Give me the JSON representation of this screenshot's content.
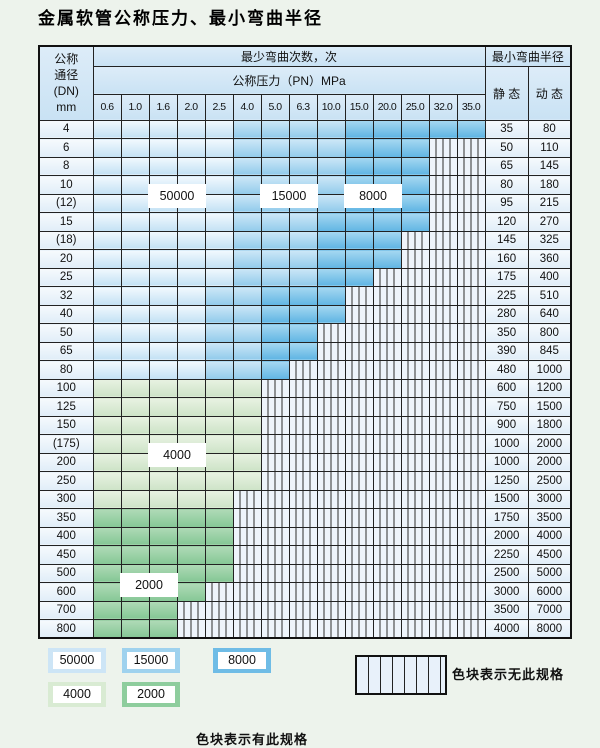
{
  "title": "金属软管公称压力、最小弯曲半径",
  "table": {
    "dn_header": "公称\n通径\n(DN)\nmm",
    "cycles_header": "最少弯曲次数，次",
    "pn_header": "公称压力（PN）MPa",
    "radius_header": "最小弯曲半径",
    "static_header": "静 态",
    "dynamic_header": "动 态",
    "pressures": [
      "0.6",
      "1.0",
      "1.6",
      "2.0",
      "2.5",
      "4.0",
      "5.0",
      "6.3",
      "10.0",
      "15.0",
      "20.0",
      "25.0",
      "32.0",
      "35.0"
    ],
    "rows": [
      {
        "dn": "4",
        "static": "35",
        "dynamic": "80",
        "cells": [
          "b1",
          "b1",
          "b1",
          "b1",
          "b1",
          "b2",
          "b2",
          "b2",
          "b2",
          "b3",
          "b3",
          "b3",
          "b3",
          "b3"
        ]
      },
      {
        "dn": "6",
        "static": "50",
        "dynamic": "110",
        "cells": [
          "b1",
          "b1",
          "b1",
          "b1",
          "b1",
          "b2",
          "b2",
          "b2",
          "b2",
          "b3",
          "b3",
          "b3",
          "x",
          "x"
        ]
      },
      {
        "dn": "8",
        "static": "65",
        "dynamic": "145",
        "cells": [
          "b1",
          "b1",
          "b1",
          "b1",
          "b1",
          "b2",
          "b2",
          "b2",
          "b2",
          "b3",
          "b3",
          "b3",
          "x",
          "x"
        ]
      },
      {
        "dn": "10",
        "static": "80",
        "dynamic": "180",
        "cells": [
          "b1",
          "b1",
          "b1",
          "b1",
          "b1",
          "b2",
          "b2",
          "b2",
          "b2",
          "b3",
          "b3",
          "b3",
          "x",
          "x"
        ]
      },
      {
        "dn": "(12)",
        "static": "95",
        "dynamic": "215",
        "cells": [
          "b1",
          "b1",
          "b1",
          "b1",
          "b1",
          "b2",
          "b2",
          "b2",
          "b2",
          "b3",
          "b3",
          "b3",
          "x",
          "x"
        ]
      },
      {
        "dn": "15",
        "static": "120",
        "dynamic": "270",
        "cells": [
          "b1",
          "b1",
          "b1",
          "b1",
          "b1",
          "b2",
          "b2",
          "b2",
          "b3",
          "b3",
          "b3",
          "b3",
          "x",
          "x"
        ]
      },
      {
        "dn": "(18)",
        "static": "145",
        "dynamic": "325",
        "cells": [
          "b1",
          "b1",
          "b1",
          "b1",
          "b1",
          "b2",
          "b2",
          "b2",
          "b3",
          "b3",
          "b3",
          "x",
          "x",
          "x"
        ]
      },
      {
        "dn": "20",
        "static": "160",
        "dynamic": "360",
        "cells": [
          "b1",
          "b1",
          "b1",
          "b1",
          "b1",
          "b2",
          "b2",
          "b2",
          "b3",
          "b3",
          "b3",
          "x",
          "x",
          "x"
        ]
      },
      {
        "dn": "25",
        "static": "175",
        "dynamic": "400",
        "cells": [
          "b1",
          "b1",
          "b1",
          "b1",
          "b1",
          "b2",
          "b2",
          "b2",
          "b3",
          "b3",
          "x",
          "x",
          "x",
          "x"
        ]
      },
      {
        "dn": "32",
        "static": "225",
        "dynamic": "510",
        "cells": [
          "b1",
          "b1",
          "b1",
          "b1",
          "b2",
          "b2",
          "b3",
          "b3",
          "b3",
          "x",
          "x",
          "x",
          "x",
          "x"
        ]
      },
      {
        "dn": "40",
        "static": "280",
        "dynamic": "640",
        "cells": [
          "b1",
          "b1",
          "b1",
          "b1",
          "b2",
          "b2",
          "b3",
          "b3",
          "b3",
          "x",
          "x",
          "x",
          "x",
          "x"
        ]
      },
      {
        "dn": "50",
        "static": "350",
        "dynamic": "800",
        "cells": [
          "b1",
          "b1",
          "b1",
          "b1",
          "b2",
          "b2",
          "b3",
          "b3",
          "x",
          "x",
          "x",
          "x",
          "x",
          "x"
        ]
      },
      {
        "dn": "65",
        "static": "390",
        "dynamic": "845",
        "cells": [
          "b1",
          "b1",
          "b1",
          "b1",
          "b2",
          "b2",
          "b3",
          "b3",
          "x",
          "x",
          "x",
          "x",
          "x",
          "x"
        ]
      },
      {
        "dn": "80",
        "static": "480",
        "dynamic": "1000",
        "cells": [
          "b1",
          "b1",
          "b1",
          "b1",
          "b2",
          "b2",
          "b3",
          "x",
          "x",
          "x",
          "x",
          "x",
          "x",
          "x"
        ]
      },
      {
        "dn": "100",
        "static": "600",
        "dynamic": "1200",
        "cells": [
          "g1",
          "g1",
          "g1",
          "g1",
          "g1",
          "g1",
          "x",
          "x",
          "x",
          "x",
          "x",
          "x",
          "x",
          "x"
        ]
      },
      {
        "dn": "125",
        "static": "750",
        "dynamic": "1500",
        "cells": [
          "g1",
          "g1",
          "g1",
          "g1",
          "g1",
          "g1",
          "x",
          "x",
          "x",
          "x",
          "x",
          "x",
          "x",
          "x"
        ]
      },
      {
        "dn": "150",
        "static": "900",
        "dynamic": "1800",
        "cells": [
          "g1",
          "g1",
          "g1",
          "g1",
          "g1",
          "g1",
          "x",
          "x",
          "x",
          "x",
          "x",
          "x",
          "x",
          "x"
        ]
      },
      {
        "dn": "(175)",
        "static": "1000",
        "dynamic": "2000",
        "cells": [
          "g1",
          "g1",
          "g1",
          "g1",
          "g1",
          "g1",
          "x",
          "x",
          "x",
          "x",
          "x",
          "x",
          "x",
          "x"
        ]
      },
      {
        "dn": "200",
        "static": "1000",
        "dynamic": "2000",
        "cells": [
          "g1",
          "g1",
          "g1",
          "g1",
          "g1",
          "g1",
          "x",
          "x",
          "x",
          "x",
          "x",
          "x",
          "x",
          "x"
        ]
      },
      {
        "dn": "250",
        "static": "1250",
        "dynamic": "2500",
        "cells": [
          "g1",
          "g1",
          "g1",
          "g1",
          "g1",
          "g1",
          "x",
          "x",
          "x",
          "x",
          "x",
          "x",
          "x",
          "x"
        ]
      },
      {
        "dn": "300",
        "static": "1500",
        "dynamic": "3000",
        "cells": [
          "g1",
          "g1",
          "g1",
          "g1",
          "g1",
          "x",
          "x",
          "x",
          "x",
          "x",
          "x",
          "x",
          "x",
          "x"
        ]
      },
      {
        "dn": "350",
        "static": "1750",
        "dynamic": "3500",
        "cells": [
          "g2",
          "g2",
          "g2",
          "g2",
          "g2",
          "x",
          "x",
          "x",
          "x",
          "x",
          "x",
          "x",
          "x",
          "x"
        ]
      },
      {
        "dn": "400",
        "static": "2000",
        "dynamic": "4000",
        "cells": [
          "g2",
          "g2",
          "g2",
          "g2",
          "g2",
          "x",
          "x",
          "x",
          "x",
          "x",
          "x",
          "x",
          "x",
          "x"
        ]
      },
      {
        "dn": "450",
        "static": "2250",
        "dynamic": "4500",
        "cells": [
          "g2",
          "g2",
          "g2",
          "g2",
          "g2",
          "x",
          "x",
          "x",
          "x",
          "x",
          "x",
          "x",
          "x",
          "x"
        ]
      },
      {
        "dn": "500",
        "static": "2500",
        "dynamic": "5000",
        "cells": [
          "g2",
          "g2",
          "g2",
          "g2",
          "g2",
          "x",
          "x",
          "x",
          "x",
          "x",
          "x",
          "x",
          "x",
          "x"
        ]
      },
      {
        "dn": "600",
        "static": "3000",
        "dynamic": "6000",
        "cells": [
          "g2",
          "g2",
          "g2",
          "g2",
          "x",
          "x",
          "x",
          "x",
          "x",
          "x",
          "x",
          "x",
          "x",
          "x"
        ]
      },
      {
        "dn": "700",
        "static": "3500",
        "dynamic": "7000",
        "cells": [
          "g2",
          "g2",
          "g2",
          "x",
          "x",
          "x",
          "x",
          "x",
          "x",
          "x",
          "x",
          "x",
          "x",
          "x"
        ]
      },
      {
        "dn": "800",
        "static": "4000",
        "dynamic": "8000",
        "cells": [
          "g2",
          "g2",
          "g2",
          "x",
          "x",
          "x",
          "x",
          "x",
          "x",
          "x",
          "x",
          "x",
          "x",
          "x"
        ]
      }
    ],
    "overlays": [
      {
        "text": "50000",
        "col": 2,
        "row": 3,
        "cols": 2,
        "rows": 2
      },
      {
        "text": "15000",
        "col": 6,
        "row": 3,
        "cols": 2,
        "rows": 2
      },
      {
        "text": "8000",
        "col": 9,
        "row": 3,
        "cols": 2,
        "rows": 2
      },
      {
        "text": "4000",
        "col": 2,
        "row": 17,
        "cols": 2,
        "rows": 2
      },
      {
        "text": "2000",
        "col": 1,
        "row": 24,
        "cols": 2,
        "rows": 2
      }
    ]
  },
  "legend": {
    "items": [
      {
        "label": "50000",
        "type": "b1"
      },
      {
        "label": "15000",
        "type": "b2"
      },
      {
        "label": "8000",
        "type": "b3"
      },
      {
        "label": "4000",
        "type": "g1"
      },
      {
        "label": "2000",
        "type": "g2"
      }
    ],
    "has_spec_text": "色块表示有此规格",
    "no_spec_text": "色块表示无此规格"
  },
  "colors": {
    "blue_50000": "#cde5f6",
    "blue_15000": "#9fd2ee",
    "blue_8000": "#6fbce6",
    "green_4000": "#d9ebd3",
    "green_2000": "#8ecd9d",
    "stripe_bg": "#eef4fb",
    "page_bg": "#edf3ec"
  }
}
